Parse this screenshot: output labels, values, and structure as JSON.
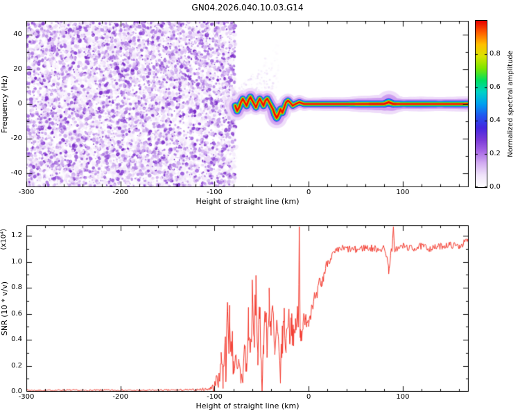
{
  "title": "GN04.2026.040.10.03.G14",
  "colors": {
    "background": "#ffffff",
    "axis": "#000000",
    "snr_line": "#f4382c",
    "noise_palette": [
      "#f6eefc",
      "#ecd9f8",
      "#dcc0f4",
      "#c49aec",
      "#a86ee2",
      "#8c46d6",
      "#7a2cc8"
    ]
  },
  "chart_data": [
    {
      "type": "heatmap",
      "title": "GN04.2026.040.10.03.G14",
      "xlabel": "Height of straight line (km)",
      "ylabel": "Frequency (Hz)",
      "xlim": [
        -300,
        170
      ],
      "ylim": [
        -48,
        48
      ],
      "xticks": [
        -300,
        -200,
        -100,
        0,
        100
      ],
      "yticks": [
        -40,
        -20,
        0,
        20,
        40
      ],
      "x_minor_step": 20,
      "y_minor_step": 10,
      "grid": false,
      "colorbar": {
        "label": "Normalized spectral amplitude",
        "ticks": [
          0.0,
          0.2,
          0.4,
          0.6,
          0.8
        ],
        "range": [
          0.0,
          1.0
        ],
        "colormap": [
          "#ffffff",
          "#f0e4fa",
          "#d4aef2",
          "#a868e6",
          "#7a3ad8",
          "#4428e0",
          "#2255f0",
          "#00a0f0",
          "#00d2c8",
          "#00e060",
          "#7ce600",
          "#d8e400",
          "#ffc000",
          "#ff6000",
          "#e80000"
        ]
      },
      "noise_region": {
        "x_range": [
          -300,
          -78
        ],
        "y_range": [
          -48,
          48
        ],
        "amplitude_range": [
          0.0,
          0.35
        ],
        "description": "dense incoherent purple speckle noise filling panel left of -78 km",
        "blob_count": 6500,
        "splotch_count": 1600
      },
      "faint_scatter": {
        "x_range": [
          -80,
          -32
        ],
        "y_range": [
          0,
          36
        ],
        "count": 260,
        "description": "sparse faint purple scatter rising diagonally above trace onset"
      },
      "signal": {
        "description": "coherent echo trace near 0 Hz, amplitude ~1.0 (red core) with rainbow halo, wiggling between -78 and -15 km then flat to 170 km",
        "x_range": [
          -78,
          170
        ],
        "path": [
          [
            -78,
            -1
          ],
          [
            -76,
            -4
          ],
          [
            -74,
            -2
          ],
          [
            -72,
            1
          ],
          [
            -70,
            3
          ],
          [
            -68,
            1
          ],
          [
            -66,
            -1
          ],
          [
            -64,
            2
          ],
          [
            -62,
            4
          ],
          [
            -60,
            2
          ],
          [
            -58,
            0
          ],
          [
            -56,
            -2
          ],
          [
            -54,
            1
          ],
          [
            -52,
            3
          ],
          [
            -50,
            1
          ],
          [
            -48,
            -1
          ],
          [
            -46,
            2
          ],
          [
            -44,
            3
          ],
          [
            -42,
            1
          ],
          [
            -40,
            -1
          ],
          [
            -38,
            -3
          ],
          [
            -36,
            -6
          ],
          [
            -34,
            -8
          ],
          [
            -32,
            -6
          ],
          [
            -30,
            -3
          ],
          [
            -28,
            -5
          ],
          [
            -26,
            -2
          ],
          [
            -24,
            1
          ],
          [
            -22,
            2
          ],
          [
            -20,
            1
          ],
          [
            -17,
            -1
          ],
          [
            -14,
            0
          ],
          [
            -10,
            1
          ],
          [
            -5,
            0
          ],
          [
            0,
            0
          ],
          [
            20,
            0
          ],
          [
            40,
            0
          ],
          [
            60,
            0
          ],
          [
            80,
            0
          ],
          [
            85,
            1
          ],
          [
            90,
            0
          ],
          [
            100,
            0
          ],
          [
            130,
            0
          ],
          [
            170,
            0
          ]
        ],
        "halo_scale": [
          [
            -78,
            1.5
          ],
          [
            -70,
            1.2
          ],
          [
            -62,
            1.4
          ],
          [
            -55,
            1.1
          ],
          [
            -48,
            1.3
          ],
          [
            -40,
            1.2
          ],
          [
            -34,
            1.6
          ],
          [
            -28,
            1.3
          ],
          [
            -20,
            1.0
          ],
          [
            -10,
            1.1
          ],
          [
            0,
            0.95
          ],
          [
            20,
            1.0
          ],
          [
            40,
            1.0
          ],
          [
            55,
            1.2
          ],
          [
            70,
            1.3
          ],
          [
            80,
            1.4
          ],
          [
            86,
            1.8
          ],
          [
            92,
            1.3
          ],
          [
            100,
            1.05
          ],
          [
            120,
            1.1
          ],
          [
            140,
            1.05
          ],
          [
            160,
            1.1
          ],
          [
            170,
            1.15
          ]
        ],
        "layers": [
          {
            "color": "#efdcfa",
            "width": 19,
            "alpha": 0.75
          },
          {
            "color": "#cf9ff0",
            "width": 13,
            "alpha": 0.6
          },
          {
            "color": "#3d3cec",
            "width": 8.5,
            "alpha": 0.95
          },
          {
            "color": "#00aef2",
            "width": 6.6,
            "alpha": 1
          },
          {
            "color": "#00d84e",
            "width": 5.2,
            "alpha": 1
          },
          {
            "color": "#c4e400",
            "width": 4.0,
            "alpha": 1
          },
          {
            "color": "#ff9a00",
            "width": 3.0,
            "alpha": 1
          },
          {
            "color": "#ee1000",
            "width": 2.0,
            "alpha": 1
          }
        ]
      }
    },
    {
      "type": "line",
      "title": "",
      "xlabel": "Height of straight line (km)",
      "ylabel": "SNR (10 * v/v)",
      "scale_note": "(x10⁴)",
      "xlim": [
        -300,
        170
      ],
      "ylim": [
        0,
        1.28
      ],
      "xticks": [
        -300,
        -200,
        -100,
        0,
        100
      ],
      "yticks": [
        0.0,
        0.2,
        0.4,
        0.6,
        0.8,
        1.0,
        1.2
      ],
      "x_minor_step": 20,
      "y_minor_step": 0.1,
      "grid": false,
      "legend": null,
      "series": [
        {
          "name": "SNR",
          "color": "#f4382c",
          "keypoints": [
            [
              -300,
              0.012
            ],
            [
              -280,
              0.01
            ],
            [
              -260,
              0.013
            ],
            [
              -240,
              0.01
            ],
            [
              -220,
              0.012
            ],
            [
              -200,
              0.012
            ],
            [
              -180,
              0.01
            ],
            [
              -160,
              0.012
            ],
            [
              -140,
              0.013
            ],
            [
              -120,
              0.015
            ],
            [
              -110,
              0.02
            ],
            [
              -105,
              0.025
            ],
            [
              -100,
              0.04
            ],
            [
              -97,
              0.12
            ],
            [
              -95,
              0.06
            ],
            [
              -93,
              0.3
            ],
            [
              -91,
              0.1
            ],
            [
              -89,
              0.45
            ],
            [
              -88,
              0.2
            ],
            [
              -86,
              0.62
            ],
            [
              -85,
              0.3
            ],
            [
              -84,
              0.66
            ],
            [
              -83,
              0.25
            ],
            [
              -81,
              0.45
            ],
            [
              -80,
              0.15
            ],
            [
              -78,
              0.3
            ],
            [
              -76,
              0.12
            ],
            [
              -74,
              0.2
            ],
            [
              -72,
              0.1
            ],
            [
              -70,
              0.12
            ],
            [
              -68,
              0.35
            ],
            [
              -66,
              0.15
            ],
            [
              -64,
              0.55
            ],
            [
              -62,
              0.25
            ],
            [
              -60,
              0.7
            ],
            [
              -58,
              0.35
            ],
            [
              -56,
              0.8
            ],
            [
              -54,
              0.3
            ],
            [
              -52,
              0.55
            ],
            [
              -50,
              0.2
            ],
            [
              -49,
              0.07
            ],
            [
              -48,
              0.45
            ],
            [
              -46,
              0.6
            ],
            [
              -44,
              0.3
            ],
            [
              -42,
              0.75
            ],
            [
              -40,
              0.45
            ],
            [
              -38,
              0.6
            ],
            [
              -36,
              0.25
            ],
            [
              -34,
              0.5
            ],
            [
              -32,
              0.3
            ],
            [
              -30,
              0.15
            ],
            [
              -28,
              0.4
            ],
            [
              -26,
              0.55
            ],
            [
              -24,
              0.35
            ],
            [
              -22,
              0.6
            ],
            [
              -20,
              0.45
            ],
            [
              -18,
              0.55
            ],
            [
              -16,
              0.35
            ],
            [
              -14,
              0.5
            ],
            [
              -12,
              0.6
            ],
            [
              -11,
              0.45
            ],
            [
              -10,
              1.25
            ],
            [
              -9,
              0.5
            ],
            [
              -8,
              0.42
            ],
            [
              -6,
              0.55
            ],
            [
              -4,
              0.5
            ],
            [
              -2,
              0.58
            ],
            [
              0,
              0.55
            ],
            [
              2,
              0.62
            ],
            [
              4,
              0.68
            ],
            [
              6,
              0.72
            ],
            [
              8,
              0.7
            ],
            [
              10,
              0.78
            ],
            [
              12,
              0.85
            ],
            [
              14,
              0.82
            ],
            [
              16,
              0.9
            ],
            [
              18,
              0.95
            ],
            [
              20,
              1.0
            ],
            [
              25,
              1.05
            ],
            [
              30,
              1.08
            ],
            [
              35,
              1.1
            ],
            [
              40,
              1.1
            ],
            [
              50,
              1.09
            ],
            [
              60,
              1.11
            ],
            [
              70,
              1.1
            ],
            [
              80,
              1.1
            ],
            [
              83,
              1.05
            ],
            [
              85,
              0.93
            ],
            [
              87,
              1.05
            ],
            [
              89,
              1.12
            ],
            [
              90,
              1.27
            ],
            [
              91,
              1.1
            ],
            [
              95,
              1.1
            ],
            [
              100,
              1.12
            ],
            [
              110,
              1.1
            ],
            [
              120,
              1.12
            ],
            [
              130,
              1.1
            ],
            [
              140,
              1.12
            ],
            [
              150,
              1.13
            ],
            [
              160,
              1.12
            ],
            [
              168,
              1.16
            ],
            [
              170,
              1.15
            ]
          ],
          "noise_envelope": [
            [
              -300,
              0.006
            ],
            [
              -120,
              0.007
            ],
            [
              -105,
              0.015
            ],
            [
              -100,
              0.04
            ],
            [
              -95,
              0.08
            ],
            [
              -90,
              0.12
            ],
            [
              -85,
              0.15
            ],
            [
              -80,
              0.1
            ],
            [
              -75,
              0.08
            ],
            [
              -70,
              0.1
            ],
            [
              -65,
              0.15
            ],
            [
              -60,
              0.18
            ],
            [
              -55,
              0.18
            ],
            [
              -50,
              0.15
            ],
            [
              -45,
              0.18
            ],
            [
              -40,
              0.18
            ],
            [
              -35,
              0.15
            ],
            [
              -30,
              0.12
            ],
            [
              -25,
              0.15
            ],
            [
              -20,
              0.12
            ],
            [
              -15,
              0.12
            ],
            [
              -10,
              0.1
            ],
            [
              -5,
              0.08
            ],
            [
              0,
              0.07
            ],
            [
              5,
              0.06
            ],
            [
              10,
              0.06
            ],
            [
              15,
              0.05
            ],
            [
              20,
              0.04
            ],
            [
              30,
              0.03
            ],
            [
              170,
              0.025
            ]
          ]
        }
      ]
    }
  ]
}
